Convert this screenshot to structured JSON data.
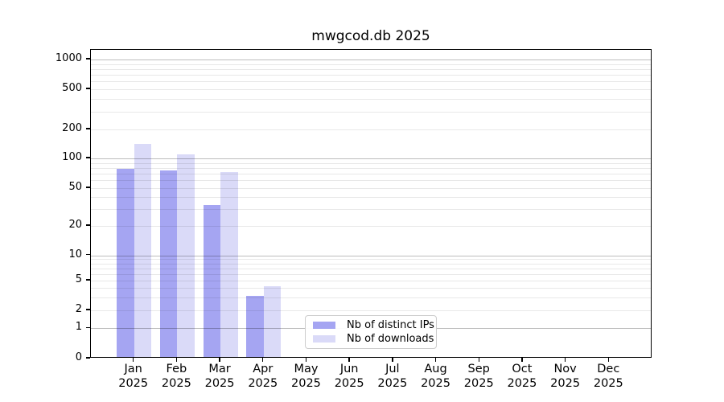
{
  "chart_data": {
    "type": "bar",
    "title": "mwgcod.db 2025",
    "year": "2025",
    "months": [
      "Jan",
      "Feb",
      "Mar",
      "Apr",
      "May",
      "Jun",
      "Jul",
      "Aug",
      "Sep",
      "Oct",
      "Nov",
      "Dec"
    ],
    "series": [
      {
        "name": "Nb of distinct IPs",
        "color": "#a5a5f2",
        "values": [
          76,
          73,
          32,
          3,
          0,
          0,
          0,
          0,
          0,
          0,
          0,
          0
        ]
      },
      {
        "name": "Nb of downloads",
        "color": "#dadaf8",
        "values": [
          135,
          106,
          70,
          4,
          0,
          0,
          0,
          0,
          0,
          0,
          0,
          0
        ]
      }
    ],
    "yticks": [
      1000,
      500,
      200,
      100,
      50,
      20,
      10,
      5,
      2,
      1,
      0
    ],
    "ylabel": "",
    "xlabel": "",
    "yscale": "log (symlog: 0 shown at baseline)",
    "ylim": [
      0,
      1000
    ],
    "grid": "horizontal major and minor gridlines",
    "legend_position": "lower center",
    "legend_entries": [
      "Nb of distinct IPs",
      "Nb of downloads"
    ]
  }
}
